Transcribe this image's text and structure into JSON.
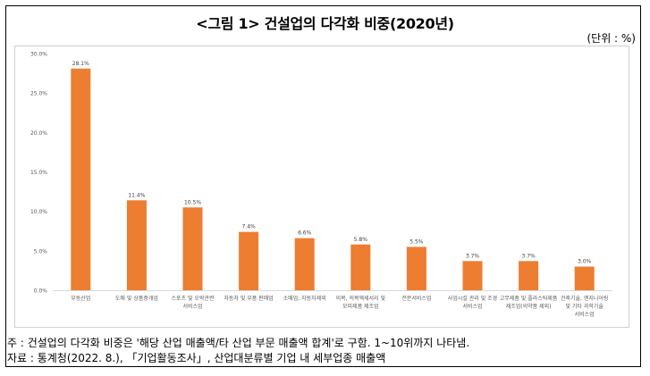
{
  "title": "<그림 1> 건설업의 다각화 비중(2020년)",
  "unit_label": "(단위 : %)",
  "note": "주 : 건설업의 다각화 비중은 '해당 산업 매출액/타 산업 부문 매출액 합계'로 구함. 1~10위까지 나타냄.",
  "source": "자료 : 통계청(2022. 8.), 「기업활동조사」, 산업대분류별 기업 내 세부업종 매출액",
  "chart_data": {
    "type": "bar",
    "categories": [
      [
        "부동산업"
      ],
      [
        "도매 및 상품중개업"
      ],
      [
        "스포츠 및 오락관련",
        "서비스업"
      ],
      [
        "자동차 및 부품 판매업"
      ],
      [
        "소매업; 자동차제외"
      ],
      [
        "의복, 의복액세서리 및",
        "모피제품 제조업"
      ],
      [
        "전문서비스업"
      ],
      [
        "사업시설 관리 및 조경",
        "서비스업"
      ],
      [
        "고무제품 및 플라스틱제품",
        "제조업(의약품 제외)"
      ],
      [
        "건축기술, 엔지니어링",
        "및 기타 과학기술",
        "서비스업"
      ]
    ],
    "values": [
      28.1,
      11.4,
      10.5,
      7.4,
      6.6,
      5.8,
      5.5,
      3.7,
      3.7,
      3.0
    ],
    "value_labels": [
      "28.1%",
      "11.4%",
      "10.5%",
      "7.4%",
      "6.6%",
      "5.8%",
      "5.5%",
      "3.7%",
      "3.7%",
      "3.0%"
    ],
    "y_ticks": [
      0,
      5,
      10,
      15,
      20,
      25,
      30
    ],
    "y_tick_labels": [
      "0.0%",
      "5.0%",
      "10.0%",
      "15.0%",
      "20.0%",
      "25.0%",
      "30.0%"
    ],
    "ylim": [
      0,
      30
    ],
    "grid": false,
    "bar_color": "#ed7d31"
  }
}
